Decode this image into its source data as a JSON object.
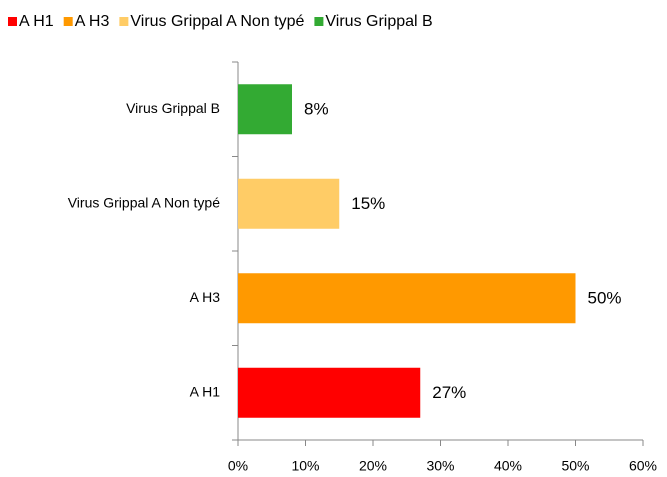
{
  "chart_data": {
    "type": "hbar",
    "categories": [
      "A H1",
      "A H3",
      "Virus Grippal A Non typé",
      "Virus Grippal B"
    ],
    "values": [
      27,
      50,
      15,
      8
    ],
    "value_labels": [
      "27%",
      "50%",
      "15%",
      "8%"
    ],
    "colors": [
      "#ff0000",
      "#ff9900",
      "#ffcc66",
      "#33aa33"
    ],
    "xlim": [
      0,
      60
    ],
    "xticks": [
      {
        "value": 0,
        "label": "0%"
      },
      {
        "value": 10,
        "label": "10%"
      },
      {
        "value": 20,
        "label": "20%"
      },
      {
        "value": 30,
        "label": "30%"
      },
      {
        "value": 40,
        "label": "40%"
      },
      {
        "value": 50,
        "label": "50%"
      },
      {
        "value": 60,
        "label": "60%"
      }
    ],
    "grid": false,
    "legend": "top"
  }
}
